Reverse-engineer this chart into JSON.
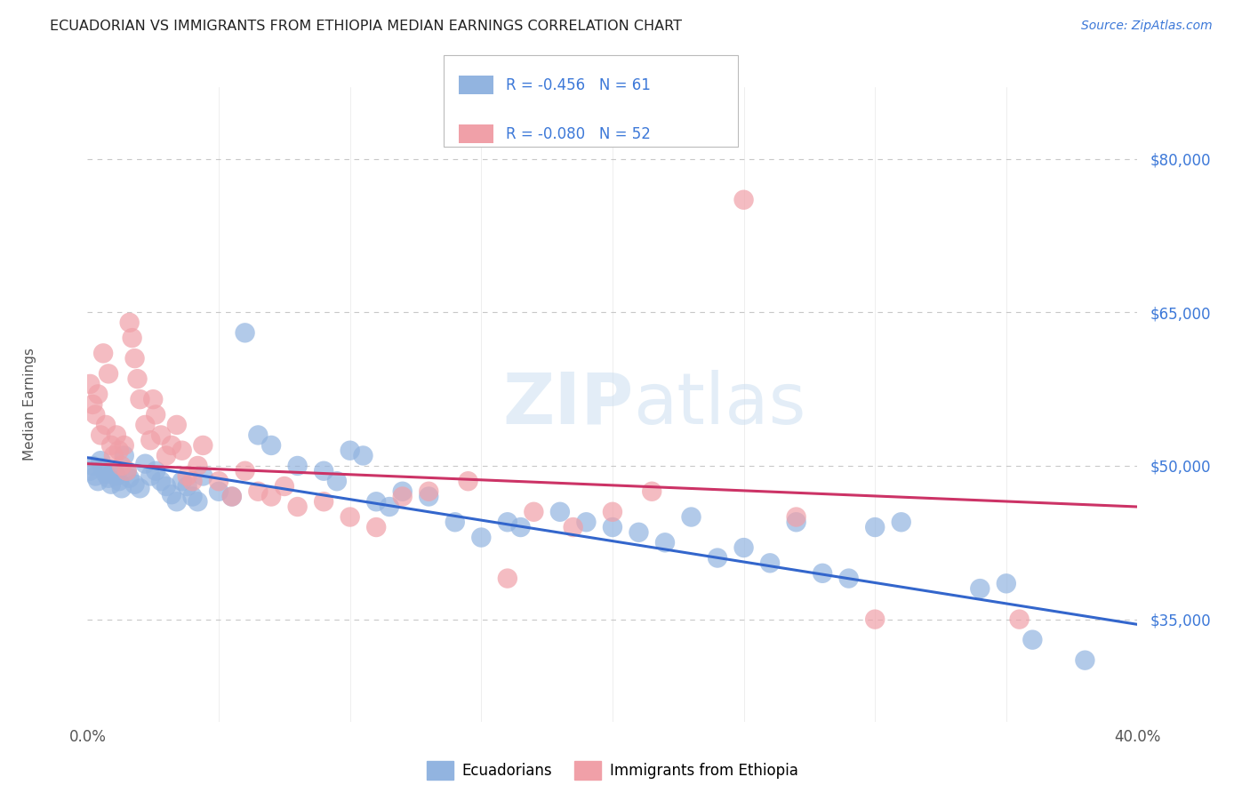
{
  "title": "ECUADORIAN VS IMMIGRANTS FROM ETHIOPIA MEDIAN EARNINGS CORRELATION CHART",
  "source": "Source: ZipAtlas.com",
  "ylabel": "Median Earnings",
  "watermark": "ZIPatlas",
  "legend_blue_R": "-0.456",
  "legend_blue_N": "61",
  "legend_pink_R": "-0.080",
  "legend_pink_N": "52",
  "yticks": [
    35000,
    50000,
    65000,
    80000
  ],
  "ytick_labels": [
    "$35,000",
    "$50,000",
    "$65,000",
    "$80,000"
  ],
  "ymin": 25000,
  "ymax": 87000,
  "xmin": 0.0,
  "xmax": 0.4,
  "blue_color": "#92b4e0",
  "pink_color": "#f0a0a8",
  "trend_blue": "#3366cc",
  "trend_pink": "#cc3366",
  "blue_scatter": [
    [
      0.001,
      49500
    ],
    [
      0.002,
      50000
    ],
    [
      0.003,
      49000
    ],
    [
      0.004,
      48500
    ],
    [
      0.005,
      50500
    ],
    [
      0.006,
      49800
    ],
    [
      0.007,
      49200
    ],
    [
      0.008,
      48800
    ],
    [
      0.009,
      48200
    ],
    [
      0.01,
      49500
    ],
    [
      0.011,
      49000
    ],
    [
      0.012,
      48500
    ],
    [
      0.013,
      47800
    ],
    [
      0.014,
      51000
    ],
    [
      0.015,
      49500
    ],
    [
      0.016,
      48800
    ],
    [
      0.018,
      48200
    ],
    [
      0.02,
      47800
    ],
    [
      0.022,
      50200
    ],
    [
      0.024,
      49000
    ],
    [
      0.026,
      49500
    ],
    [
      0.028,
      48500
    ],
    [
      0.03,
      48000
    ],
    [
      0.032,
      47200
    ],
    [
      0.034,
      46500
    ],
    [
      0.036,
      48500
    ],
    [
      0.038,
      48000
    ],
    [
      0.04,
      47000
    ],
    [
      0.042,
      46500
    ],
    [
      0.044,
      49000
    ],
    [
      0.05,
      47500
    ],
    [
      0.055,
      47000
    ],
    [
      0.06,
      63000
    ],
    [
      0.065,
      53000
    ],
    [
      0.07,
      52000
    ],
    [
      0.08,
      50000
    ],
    [
      0.09,
      49500
    ],
    [
      0.095,
      48500
    ],
    [
      0.1,
      51500
    ],
    [
      0.105,
      51000
    ],
    [
      0.11,
      46500
    ],
    [
      0.115,
      46000
    ],
    [
      0.12,
      47500
    ],
    [
      0.13,
      47000
    ],
    [
      0.14,
      44500
    ],
    [
      0.15,
      43000
    ],
    [
      0.16,
      44500
    ],
    [
      0.165,
      44000
    ],
    [
      0.18,
      45500
    ],
    [
      0.19,
      44500
    ],
    [
      0.2,
      44000
    ],
    [
      0.21,
      43500
    ],
    [
      0.22,
      42500
    ],
    [
      0.23,
      45000
    ],
    [
      0.24,
      41000
    ],
    [
      0.25,
      42000
    ],
    [
      0.26,
      40500
    ],
    [
      0.27,
      44500
    ],
    [
      0.28,
      39500
    ],
    [
      0.29,
      39000
    ],
    [
      0.3,
      44000
    ],
    [
      0.31,
      44500
    ],
    [
      0.34,
      38000
    ],
    [
      0.35,
      38500
    ],
    [
      0.36,
      33000
    ],
    [
      0.38,
      31000
    ]
  ],
  "pink_scatter": [
    [
      0.001,
      58000
    ],
    [
      0.002,
      56000
    ],
    [
      0.003,
      55000
    ],
    [
      0.004,
      57000
    ],
    [
      0.005,
      53000
    ],
    [
      0.006,
      61000
    ],
    [
      0.007,
      54000
    ],
    [
      0.008,
      59000
    ],
    [
      0.009,
      52000
    ],
    [
      0.01,
      51000
    ],
    [
      0.011,
      53000
    ],
    [
      0.012,
      51500
    ],
    [
      0.013,
      50000
    ],
    [
      0.014,
      52000
    ],
    [
      0.015,
      49500
    ],
    [
      0.016,
      64000
    ],
    [
      0.017,
      62500
    ],
    [
      0.018,
      60500
    ],
    [
      0.019,
      58500
    ],
    [
      0.02,
      56500
    ],
    [
      0.022,
      54000
    ],
    [
      0.024,
      52500
    ],
    [
      0.025,
      56500
    ],
    [
      0.026,
      55000
    ],
    [
      0.028,
      53000
    ],
    [
      0.03,
      51000
    ],
    [
      0.032,
      52000
    ],
    [
      0.034,
      54000
    ],
    [
      0.036,
      51500
    ],
    [
      0.038,
      49000
    ],
    [
      0.04,
      48500
    ],
    [
      0.042,
      50000
    ],
    [
      0.044,
      52000
    ],
    [
      0.05,
      48500
    ],
    [
      0.055,
      47000
    ],
    [
      0.06,
      49500
    ],
    [
      0.065,
      47500
    ],
    [
      0.07,
      47000
    ],
    [
      0.075,
      48000
    ],
    [
      0.08,
      46000
    ],
    [
      0.09,
      46500
    ],
    [
      0.1,
      45000
    ],
    [
      0.11,
      44000
    ],
    [
      0.12,
      47000
    ],
    [
      0.13,
      47500
    ],
    [
      0.145,
      48500
    ],
    [
      0.16,
      39000
    ],
    [
      0.17,
      45500
    ],
    [
      0.185,
      44000
    ],
    [
      0.2,
      45500
    ],
    [
      0.215,
      47500
    ],
    [
      0.25,
      76000
    ],
    [
      0.27,
      45000
    ],
    [
      0.3,
      35000
    ],
    [
      0.355,
      35000
    ]
  ],
  "blue_trend_x": [
    0.0,
    0.4
  ],
  "blue_trend_y": [
    50800,
    34500
  ],
  "pink_trend_x": [
    0.0,
    0.4
  ],
  "pink_trend_y": [
    50200,
    46000
  ],
  "background_color": "#ffffff",
  "grid_color": "#c8c8c8"
}
